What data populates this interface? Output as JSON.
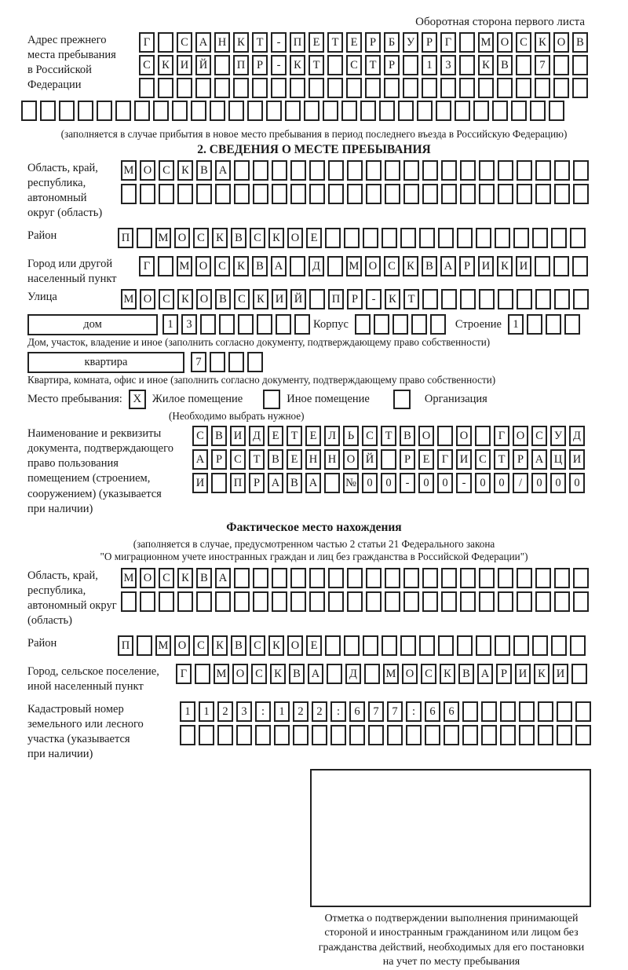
{
  "colors": {
    "ink": "#1a1a1a",
    "box_border": "#222222",
    "background": "#ffffff"
  },
  "header": {
    "side_note": "Оборотная сторона первого листа"
  },
  "prev_address": {
    "label": "Адрес прежнего\nместа пребывания\nв Российской\nФедерации",
    "rows": [
      {
        "cells": "Г САНКТ-ПЕТЕРБУРГ МОСКОВ",
        "count": 24
      },
      {
        "cells": "СКИЙ ПР-КТ СТР 13 КВ 7",
        "count": 24
      },
      {
        "cells": "",
        "count": 24
      },
      {
        "cells": "",
        "count": 29
      }
    ],
    "note": "(заполняется в случае прибытия в новое место пребывания в период последнего въезда в Российскую Федерацию)"
  },
  "section2": {
    "title": "2. СВЕДЕНИЯ О МЕСТЕ ПРЕБЫВАНИЯ",
    "region": {
      "label": "Область, край,\nреспублика,\nавтономный\nокруг (область)",
      "rows": [
        {
          "cells": "МОСКВА",
          "count": 25
        },
        {
          "cells": "",
          "count": 25
        }
      ]
    },
    "district": {
      "label": "Район",
      "row": {
        "cells": "П МОСКВСКОЕ",
        "count": 25
      }
    },
    "city": {
      "label": "Город или другой\nнаселенный пункт",
      "row": {
        "cells": "Г МОСКВА Д МОСКВАРИКИ",
        "count": 24
      }
    },
    "street": {
      "label": "Улица",
      "row": {
        "cells": "МОСКОВСКИЙ ПР-КТ",
        "count": 25
      }
    },
    "house": {
      "box_label": "дом",
      "row": {
        "cells": "13",
        "count": 8
      },
      "korpus_label": "Корпус",
      "korpus_row": {
        "cells": "",
        "count": 5
      },
      "stroenie_label": "Строение",
      "stroenie_row": {
        "cells": "1",
        "count": 4
      },
      "note": "Дом, участок, владение и иное (заполнить согласно документу, подтверждающему право собственности)"
    },
    "apartment": {
      "box_label": "квартира",
      "row": {
        "cells": "7",
        "count": 4
      },
      "note": "Квартира, комната, офис и иное (заполнить согласно документу, подтверждающему право собственности)"
    },
    "stay_type": {
      "label": "Место пребывания:",
      "options": [
        {
          "label": "Жилое помещение",
          "mark": "X"
        },
        {
          "label": "Иное помещение",
          "mark": ""
        },
        {
          "label": "Организация",
          "mark": ""
        }
      ],
      "note": "(Необходимо выбрать нужное)"
    },
    "document": {
      "label": "Наименование и реквизиты\nдокумента, подтверждающего\nправо пользования\nпомещением (строением,\nсооружением) (указывается\nпри наличии)",
      "rows": [
        {
          "cells": "СВИДЕТЕЛЬСТВО О ГОСУД",
          "count": 21
        },
        {
          "cells": "АРСТВЕННОЙ РЕГИСТРАЦИ",
          "count": 21
        },
        {
          "cells": "И ПРАВА №00-00-00/000",
          "count": 21
        }
      ]
    }
  },
  "actual_location": {
    "title": "Фактическое место нахождения",
    "note": "(заполняется в случае, предусмотренном частью 2 статьи 21 Федерального закона\n\"О миграционном учете иностранных граждан и лиц без гражданства в Российской Федерации\")",
    "region": {
      "label": "Область, край,\nреспублика,\nавтономный округ\n(область)",
      "rows": [
        {
          "cells": "МОСКВА",
          "count": 25
        },
        {
          "cells": "",
          "count": 25
        }
      ]
    },
    "district": {
      "label": "Район",
      "row": {
        "cells": "П МОСКВСКОЕ",
        "count": 25
      }
    },
    "city": {
      "label": "Город, сельское поселение,\nиной населенный пункт",
      "row": {
        "cells": "Г МОСКВА Д МОСКВАРИКИ",
        "count": 22
      }
    },
    "cadastre": {
      "label": "Кадастровый номер\nземельного или лесного\nучастка (указывается\nпри наличии)",
      "rows": [
        {
          "cells": "1123:122:677:66",
          "count": 22
        },
        {
          "cells": "",
          "count": 22
        }
      ]
    },
    "stamp_caption": "Отметка о подтверждении выполнения принимающей\nстороной и иностранным гражданином или лицом без\nгражданства действий, необходимых для его постановки\nна учет по месту пребывания"
  }
}
